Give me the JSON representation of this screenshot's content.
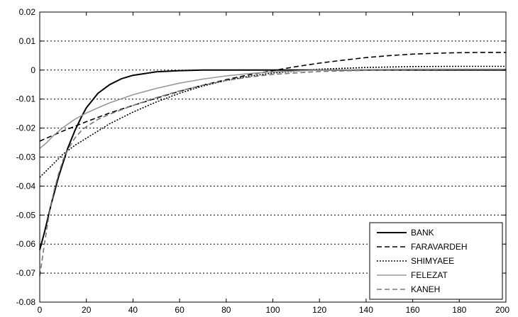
{
  "chart_data": {
    "type": "line",
    "xlim": [
      0,
      200
    ],
    "ylim": [
      -0.08,
      0.02
    ],
    "x_ticks": [
      0,
      20,
      40,
      60,
      80,
      100,
      120,
      140,
      160,
      180,
      200
    ],
    "y_ticks": [
      0.02,
      0.01,
      0,
      -0.01,
      -0.02,
      -0.03,
      -0.04,
      -0.05,
      -0.06,
      -0.07,
      -0.08
    ],
    "x_tick_labels": [
      "0",
      "20",
      "40",
      "60",
      "80",
      "100",
      "120",
      "140",
      "160",
      "180",
      "200"
    ],
    "y_tick_labels": [
      "0.02",
      "0.01",
      "0",
      "-0.01",
      "-0.02",
      "-0.03",
      "-0.04",
      "-0.05",
      "-0.06",
      "-0.07",
      "-0.08"
    ],
    "grid": "horizontal dotted",
    "legend_position": "bottom-right",
    "series": [
      {
        "name": "BANK",
        "color": "#000000",
        "style": "solid",
        "x": [
          0,
          2,
          5,
          8,
          10,
          12,
          15,
          18,
          20,
          25,
          30,
          35,
          40,
          50,
          60,
          70,
          80,
          90,
          100,
          120,
          140,
          160,
          180,
          200
        ],
        "y": [
          -0.062,
          -0.056,
          -0.046,
          -0.037,
          -0.032,
          -0.027,
          -0.021,
          -0.016,
          -0.013,
          -0.008,
          -0.005,
          -0.003,
          -0.0018,
          -0.0006,
          -0.0002,
          0,
          0,
          0,
          0,
          0,
          0,
          0,
          0,
          0
        ]
      },
      {
        "name": "FARAVARDEH",
        "color": "#000000",
        "style": "dashed",
        "x": [
          0,
          10,
          20,
          30,
          40,
          50,
          60,
          70,
          80,
          90,
          100,
          110,
          120,
          130,
          140,
          150,
          160,
          170,
          180,
          190,
          200
        ],
        "y": [
          -0.0245,
          -0.021,
          -0.0178,
          -0.0148,
          -0.0122,
          -0.0097,
          -0.0073,
          -0.0052,
          -0.0033,
          -0.0016,
          -0.0002,
          0.0012,
          0.0024,
          0.0034,
          0.0043,
          0.005,
          0.0055,
          0.0058,
          0.006,
          0.0061,
          0.0061
        ]
      },
      {
        "name": "SHIMYAEE",
        "color": "#000000",
        "style": "dotted",
        "x": [
          0,
          5,
          10,
          15,
          20,
          30,
          40,
          50,
          60,
          70,
          80,
          90,
          100,
          120,
          140,
          160,
          180,
          200
        ],
        "y": [
          -0.037,
          -0.033,
          -0.029,
          -0.026,
          -0.0235,
          -0.0185,
          -0.0145,
          -0.011,
          -0.008,
          -0.0055,
          -0.0036,
          -0.0021,
          -0.001,
          0.0003,
          0.0009,
          0.0012,
          0.0013,
          0.0013
        ]
      },
      {
        "name": "FELEZAT",
        "color": "#999999",
        "style": "solid",
        "x": [
          0,
          3,
          6,
          10,
          15,
          20,
          25,
          30,
          40,
          50,
          60,
          70,
          80,
          90,
          100,
          120,
          140,
          160,
          180,
          200
        ],
        "y": [
          -0.027,
          -0.025,
          -0.0225,
          -0.0198,
          -0.017,
          -0.0148,
          -0.013,
          -0.0113,
          -0.0085,
          -0.0063,
          -0.0045,
          -0.0031,
          -0.002,
          -0.0012,
          -0.0006,
          0,
          0.0002,
          0.0003,
          0.0003,
          0.0003
        ]
      },
      {
        "name": "KANEH",
        "color": "#777777",
        "style": "dashed",
        "x": [
          0,
          2,
          4,
          6,
          8,
          10,
          12,
          15,
          18,
          20,
          25,
          30,
          40,
          50,
          60,
          70,
          80,
          90,
          100,
          120,
          140,
          160,
          180,
          200
        ],
        "y": [
          -0.071,
          -0.06,
          -0.05,
          -0.042,
          -0.036,
          -0.031,
          -0.0275,
          -0.0235,
          -0.0208,
          -0.0195,
          -0.017,
          -0.0152,
          -0.0122,
          -0.0095,
          -0.0072,
          -0.0052,
          -0.0036,
          -0.0024,
          -0.0015,
          -0.0005,
          -0.0001,
          0.0001,
          0.0002,
          0.0002
        ]
      }
    ]
  }
}
